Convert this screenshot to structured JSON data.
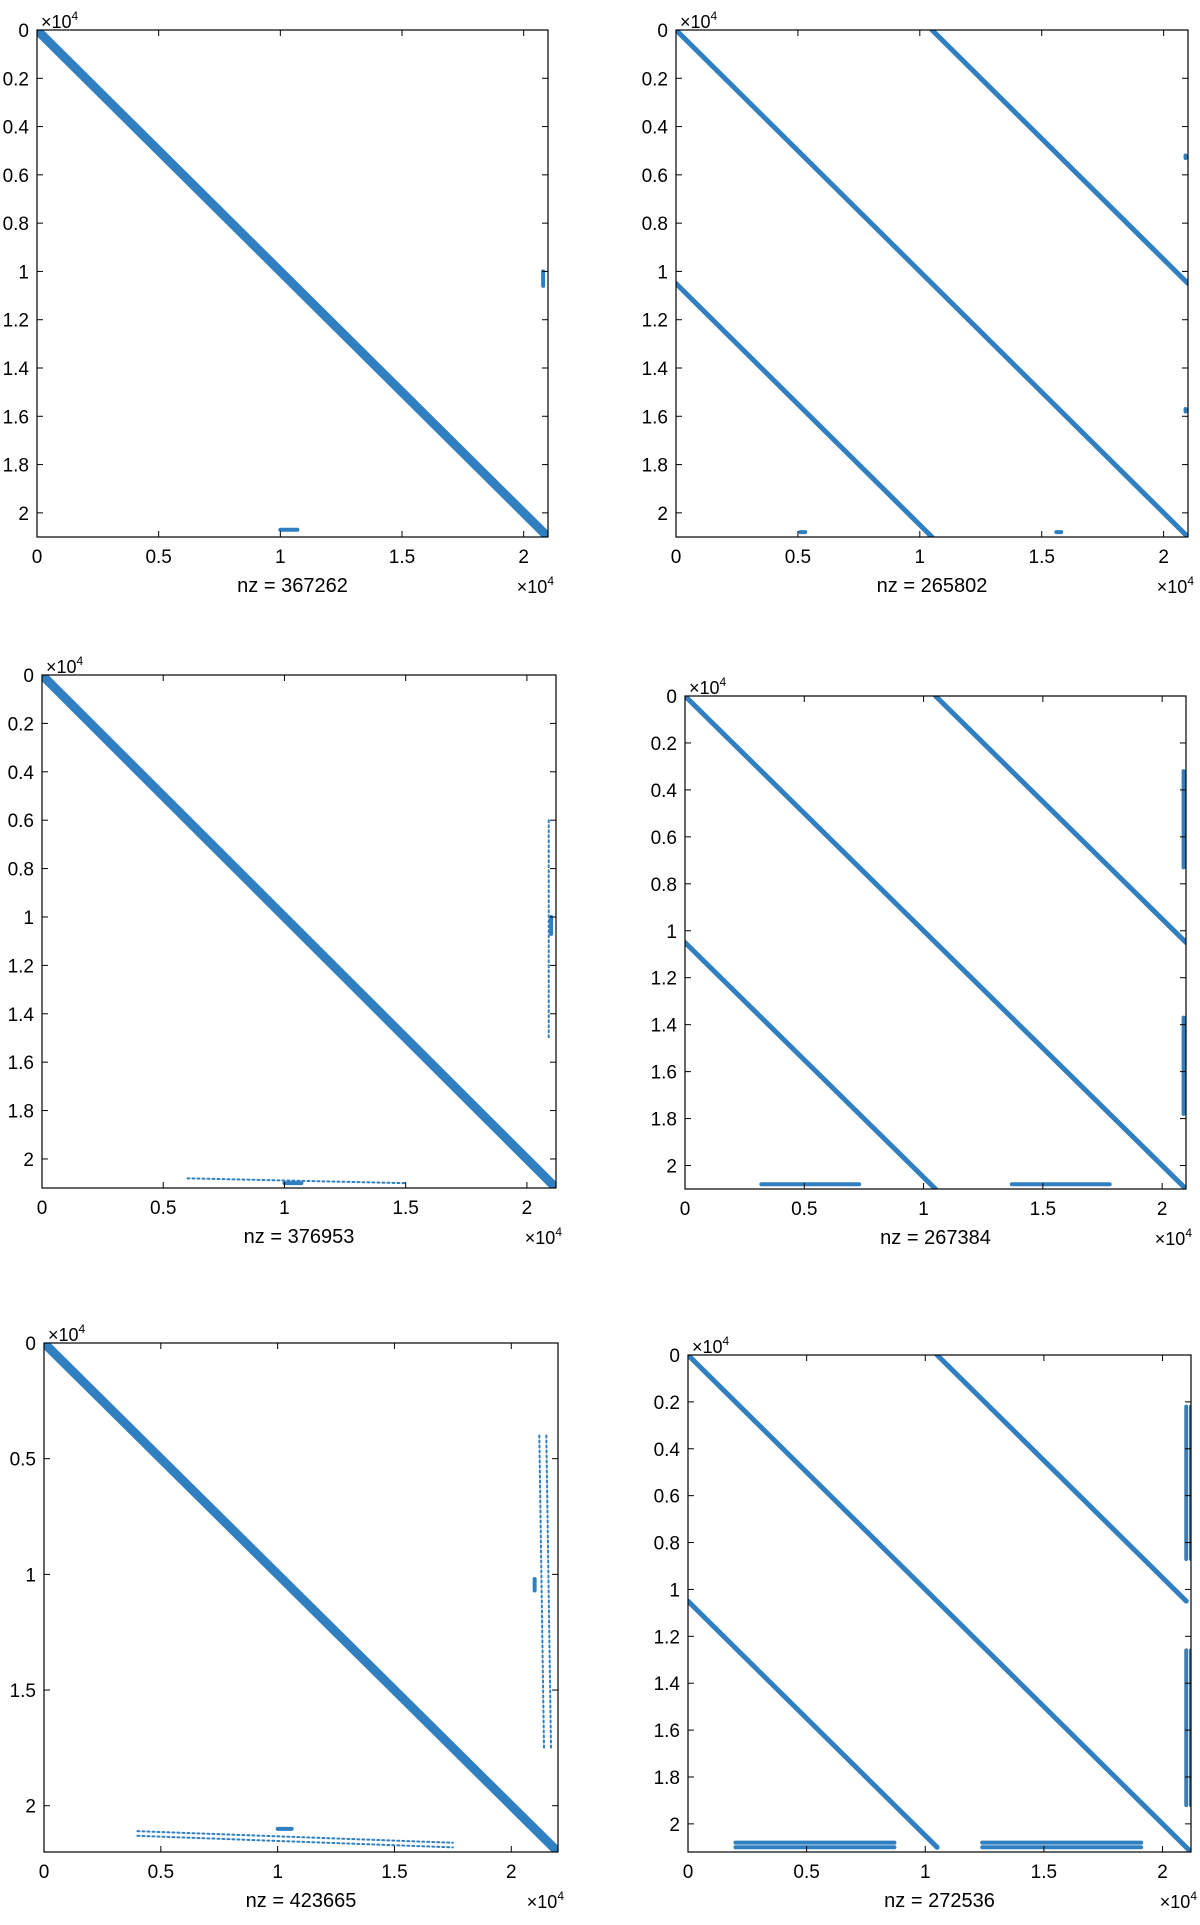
{
  "colors": {
    "pattern": "#2f7fc1",
    "axis": "#000000",
    "background": "#ffffff"
  },
  "chart_data": [
    {
      "type": "spy",
      "nz_label": "nz = 367262",
      "xticks": [
        {
          "v": 0,
          "label": "0"
        },
        {
          "v": 0.5,
          "label": "0.5"
        },
        {
          "v": 1,
          "label": "1"
        },
        {
          "v": 1.5,
          "label": "1.5"
        },
        {
          "v": 2,
          "label": "2"
        }
      ],
      "yticks": [
        {
          "v": 0,
          "label": "0"
        },
        {
          "v": 0.2,
          "label": "0.2"
        },
        {
          "v": 0.4,
          "label": "0.4"
        },
        {
          "v": 0.6,
          "label": "0.6"
        },
        {
          "v": 0.8,
          "label": "0.8"
        },
        {
          "v": 1,
          "label": "1"
        },
        {
          "v": 1.2,
          "label": "1.2"
        },
        {
          "v": 1.4,
          "label": "1.4"
        },
        {
          "v": 1.6,
          "label": "1.6"
        },
        {
          "v": 1.8,
          "label": "1.8"
        },
        {
          "v": 2,
          "label": "2"
        }
      ],
      "x_multiplier": {
        "base": "×10",
        "exp": "4"
      },
      "y_multiplier": {
        "base": "×10",
        "exp": "4"
      },
      "xlim": [
        0,
        2.1
      ],
      "ylim": [
        0,
        2.1
      ],
      "bands": [
        {
          "name": "main-diagonal",
          "x0": 0,
          "y0": 0,
          "x1": 2.1,
          "y1": 2.1,
          "width": 9,
          "dashed": false
        }
      ],
      "blobs": [
        {
          "name": "right-column-block",
          "x0": 2.08,
          "y0": 1.0,
          "x1": 2.08,
          "y1": 1.06,
          "width": 4,
          "dashed": false
        },
        {
          "name": "bottom-row-block",
          "x0": 1.0,
          "y0": 2.07,
          "x1": 1.07,
          "y1": 2.07,
          "width": 4,
          "dashed": false
        }
      ]
    },
    {
      "type": "spy",
      "nz_label": "nz = 265802",
      "xticks": [
        {
          "v": 0,
          "label": "0"
        },
        {
          "v": 0.5,
          "label": "0.5"
        },
        {
          "v": 1,
          "label": "1"
        },
        {
          "v": 1.5,
          "label": "1.5"
        },
        {
          "v": 2,
          "label": "2"
        }
      ],
      "yticks": [
        {
          "v": 0,
          "label": "0"
        },
        {
          "v": 0.2,
          "label": "0.2"
        },
        {
          "v": 0.4,
          "label": "0.4"
        },
        {
          "v": 0.6,
          "label": "0.6"
        },
        {
          "v": 0.8,
          "label": "0.8"
        },
        {
          "v": 1,
          "label": "1"
        },
        {
          "v": 1.2,
          "label": "1.2"
        },
        {
          "v": 1.4,
          "label": "1.4"
        },
        {
          "v": 1.6,
          "label": "1.6"
        },
        {
          "v": 1.8,
          "label": "1.8"
        },
        {
          "v": 2,
          "label": "2"
        }
      ],
      "x_multiplier": {
        "base": "×10",
        "exp": "4"
      },
      "y_multiplier": {
        "base": "×10",
        "exp": "4"
      },
      "xlim": [
        0,
        2.1
      ],
      "ylim": [
        0,
        2.1
      ],
      "bands": [
        {
          "name": "main-diagonal",
          "x0": 0,
          "y0": 0,
          "x1": 2.1,
          "y1": 2.1,
          "width": 5,
          "dashed": false
        },
        {
          "name": "upper-off-diagonal",
          "x0": 1.05,
          "y0": 0,
          "x1": 2.1,
          "y1": 1.05,
          "width": 5,
          "dashed": false
        },
        {
          "name": "lower-off-diagonal",
          "x0": 0,
          "y0": 1.05,
          "x1": 1.05,
          "y1": 2.1,
          "width": 5,
          "dashed": false
        }
      ],
      "blobs": [
        {
          "name": "right-dot-1",
          "x0": 2.09,
          "y0": 0.52,
          "x1": 2.09,
          "y1": 0.53,
          "width": 4,
          "dashed": false
        },
        {
          "name": "right-dot-2",
          "x0": 2.09,
          "y0": 1.57,
          "x1": 2.09,
          "y1": 1.58,
          "width": 4,
          "dashed": false
        },
        {
          "name": "bottom-dot-1",
          "x0": 0.51,
          "y0": 2.08,
          "x1": 0.53,
          "y1": 2.08,
          "width": 4,
          "dashed": false
        },
        {
          "name": "bottom-dot-2",
          "x0": 1.56,
          "y0": 2.08,
          "x1": 1.58,
          "y1": 2.08,
          "width": 4,
          "dashed": false
        }
      ]
    },
    {
      "type": "spy",
      "nz_label": "nz = 376953",
      "xticks": [
        {
          "v": 0,
          "label": "0"
        },
        {
          "v": 0.5,
          "label": "0.5"
        },
        {
          "v": 1,
          "label": "1"
        },
        {
          "v": 1.5,
          "label": "1.5"
        },
        {
          "v": 2,
          "label": "2"
        }
      ],
      "yticks": [
        {
          "v": 0,
          "label": "0"
        },
        {
          "v": 0.2,
          "label": "0.2"
        },
        {
          "v": 0.4,
          "label": "0.4"
        },
        {
          "v": 0.6,
          "label": "0.6"
        },
        {
          "v": 0.8,
          "label": "0.8"
        },
        {
          "v": 1,
          "label": "1"
        },
        {
          "v": 1.2,
          "label": "1.2"
        },
        {
          "v": 1.4,
          "label": "1.4"
        },
        {
          "v": 1.6,
          "label": "1.6"
        },
        {
          "v": 1.8,
          "label": "1.8"
        },
        {
          "v": 2,
          "label": "2"
        }
      ],
      "x_multiplier": {
        "base": "×10",
        "exp": "4"
      },
      "y_multiplier": {
        "base": "×10",
        "exp": "4"
      },
      "xlim": [
        0,
        2.12
      ],
      "ylim": [
        0,
        2.12
      ],
      "bands": [
        {
          "name": "main-diagonal",
          "x0": 0,
          "y0": 0,
          "x1": 2.12,
          "y1": 2.12,
          "width": 9,
          "dashed": false
        }
      ],
      "blobs": [
        {
          "name": "right-column-dotted",
          "x0": 2.09,
          "y0": 0.6,
          "x1": 2.09,
          "y1": 1.5,
          "width": 2,
          "dashed": true
        },
        {
          "name": "right-column-block",
          "x0": 2.1,
          "y0": 1.0,
          "x1": 2.1,
          "y1": 1.07,
          "width": 4,
          "dashed": false
        },
        {
          "name": "bottom-row-dotted",
          "x0": 0.6,
          "y0": 2.08,
          "x1": 1.5,
          "y1": 2.1,
          "width": 2,
          "dashed": true
        },
        {
          "name": "bottom-row-block",
          "x0": 1.0,
          "y0": 2.1,
          "x1": 1.07,
          "y1": 2.1,
          "width": 4,
          "dashed": false
        }
      ]
    },
    {
      "type": "spy",
      "nz_label": "nz = 267384",
      "xticks": [
        {
          "v": 0,
          "label": "0"
        },
        {
          "v": 0.5,
          "label": "0.5"
        },
        {
          "v": 1,
          "label": "1"
        },
        {
          "v": 1.5,
          "label": "1.5"
        },
        {
          "v": 2,
          "label": "2"
        }
      ],
      "yticks": [
        {
          "v": 0,
          "label": "0"
        },
        {
          "v": 0.2,
          "label": "0.2"
        },
        {
          "v": 0.4,
          "label": "0.4"
        },
        {
          "v": 0.6,
          "label": "0.6"
        },
        {
          "v": 0.8,
          "label": "0.8"
        },
        {
          "v": 1,
          "label": "1"
        },
        {
          "v": 1.2,
          "label": "1.2"
        },
        {
          "v": 1.4,
          "label": "1.4"
        },
        {
          "v": 1.6,
          "label": "1.6"
        },
        {
          "v": 1.8,
          "label": "1.8"
        },
        {
          "v": 2,
          "label": "2"
        }
      ],
      "x_multiplier": {
        "base": "×10",
        "exp": "4"
      },
      "y_multiplier": {
        "base": "×10",
        "exp": "4"
      },
      "xlim": [
        0,
        2.1
      ],
      "ylim": [
        0,
        2.1
      ],
      "bands": [
        {
          "name": "main-diagonal",
          "x0": 0,
          "y0": 0,
          "x1": 2.1,
          "y1": 2.1,
          "width": 5,
          "dashed": false
        },
        {
          "name": "upper-off-diagonal",
          "x0": 1.05,
          "y0": 0,
          "x1": 2.1,
          "y1": 1.05,
          "width": 5,
          "dashed": false
        },
        {
          "name": "lower-off-diagonal",
          "x0": 0,
          "y0": 1.05,
          "x1": 1.05,
          "y1": 2.1,
          "width": 5,
          "dashed": false
        }
      ],
      "blobs": [
        {
          "name": "right-column-1",
          "x0": 2.09,
          "y0": 0.32,
          "x1": 2.09,
          "y1": 0.73,
          "width": 4,
          "dashed": false
        },
        {
          "name": "right-column-2",
          "x0": 2.09,
          "y0": 1.37,
          "x1": 2.09,
          "y1": 1.78,
          "width": 4,
          "dashed": false
        },
        {
          "name": "bottom-row-1",
          "x0": 0.32,
          "y0": 2.08,
          "x1": 0.73,
          "y1": 2.08,
          "width": 4,
          "dashed": false
        },
        {
          "name": "bottom-row-2",
          "x0": 1.37,
          "y0": 2.08,
          "x1": 1.78,
          "y1": 2.08,
          "width": 4,
          "dashed": false
        }
      ]
    },
    {
      "type": "spy",
      "nz_label": "nz = 423665",
      "xticks": [
        {
          "v": 0,
          "label": "0"
        },
        {
          "v": 0.5,
          "label": "0.5"
        },
        {
          "v": 1,
          "label": "1"
        },
        {
          "v": 1.5,
          "label": "1.5"
        },
        {
          "v": 2,
          "label": "2"
        }
      ],
      "yticks": [
        {
          "v": 0,
          "label": "0"
        },
        {
          "v": 0.5,
          "label": "0.5"
        },
        {
          "v": 1,
          "label": "1"
        },
        {
          "v": 1.5,
          "label": "1.5"
        },
        {
          "v": 2,
          "label": "2"
        }
      ],
      "x_multiplier": {
        "base": "×10",
        "exp": "4"
      },
      "y_multiplier": {
        "base": "×10",
        "exp": "4"
      },
      "xlim": [
        0,
        2.2
      ],
      "ylim": [
        0,
        2.2
      ],
      "bands": [
        {
          "name": "main-diagonal",
          "x0": 0,
          "y0": 0,
          "x1": 2.2,
          "y1": 2.2,
          "width": 9,
          "dashed": false
        }
      ],
      "blobs": [
        {
          "name": "right-column-dotted-a",
          "x0": 2.12,
          "y0": 0.4,
          "x1": 2.14,
          "y1": 1.75,
          "width": 2,
          "dashed": true
        },
        {
          "name": "right-column-dotted-b",
          "x0": 2.15,
          "y0": 0.4,
          "x1": 2.17,
          "y1": 1.75,
          "width": 2,
          "dashed": true
        },
        {
          "name": "right-column-block",
          "x0": 2.1,
          "y0": 1.02,
          "x1": 2.1,
          "y1": 1.07,
          "width": 4,
          "dashed": false
        },
        {
          "name": "bottom-row-dotted-a",
          "x0": 0.4,
          "y0": 2.11,
          "x1": 1.75,
          "y1": 2.16,
          "width": 2,
          "dashed": true
        },
        {
          "name": "bottom-row-dotted-b",
          "x0": 0.4,
          "y0": 2.13,
          "x1": 1.75,
          "y1": 2.18,
          "width": 2,
          "dashed": true
        },
        {
          "name": "bottom-row-block",
          "x0": 1.0,
          "y0": 2.1,
          "x1": 1.06,
          "y1": 2.1,
          "width": 4,
          "dashed": false
        }
      ]
    },
    {
      "type": "spy",
      "nz_label": "nz = 272536",
      "xticks": [
        {
          "v": 0,
          "label": "0"
        },
        {
          "v": 0.5,
          "label": "0.5"
        },
        {
          "v": 1,
          "label": "1"
        },
        {
          "v": 1.5,
          "label": "1.5"
        },
        {
          "v": 2,
          "label": "2"
        }
      ],
      "yticks": [
        {
          "v": 0,
          "label": "0"
        },
        {
          "v": 0.2,
          "label": "0.2"
        },
        {
          "v": 0.4,
          "label": "0.4"
        },
        {
          "v": 0.6,
          "label": "0.6"
        },
        {
          "v": 0.8,
          "label": "0.8"
        },
        {
          "v": 1,
          "label": "1"
        },
        {
          "v": 1.2,
          "label": "1.2"
        },
        {
          "v": 1.4,
          "label": "1.4"
        },
        {
          "v": 1.6,
          "label": "1.6"
        },
        {
          "v": 1.8,
          "label": "1.8"
        },
        {
          "v": 2,
          "label": "2"
        }
      ],
      "x_multiplier": {
        "base": "×10",
        "exp": "4"
      },
      "y_multiplier": {
        "base": "×10",
        "exp": "4"
      },
      "xlim": [
        0,
        2.12
      ],
      "ylim": [
        0,
        2.12
      ],
      "bands": [
        {
          "name": "main-diagonal",
          "x0": 0,
          "y0": 0,
          "x1": 2.12,
          "y1": 2.12,
          "width": 5,
          "dashed": false
        },
        {
          "name": "upper-off-diagonal",
          "x0": 1.05,
          "y0": 0,
          "x1": 2.1,
          "y1": 1.05,
          "width": 5,
          "dashed": false
        },
        {
          "name": "lower-off-diagonal",
          "x0": 0,
          "y0": 1.05,
          "x1": 1.05,
          "y1": 2.1,
          "width": 5,
          "dashed": false
        }
      ],
      "blobs": [
        {
          "name": "right-column-1a",
          "x0": 2.1,
          "y0": 0.22,
          "x1": 2.1,
          "y1": 0.87,
          "width": 4,
          "dashed": false
        },
        {
          "name": "right-column-1b",
          "x0": 2.12,
          "y0": 0.22,
          "x1": 2.12,
          "y1": 0.87,
          "width": 4,
          "dashed": false
        },
        {
          "name": "right-column-2a",
          "x0": 2.1,
          "y0": 1.26,
          "x1": 2.1,
          "y1": 1.92,
          "width": 4,
          "dashed": false
        },
        {
          "name": "right-column-2b",
          "x0": 2.12,
          "y0": 1.26,
          "x1": 2.12,
          "y1": 1.92,
          "width": 4,
          "dashed": false
        },
        {
          "name": "bottom-row-1a",
          "x0": 0.2,
          "y0": 2.08,
          "x1": 0.87,
          "y1": 2.08,
          "width": 4,
          "dashed": false
        },
        {
          "name": "bottom-row-1b",
          "x0": 0.2,
          "y0": 2.1,
          "x1": 0.87,
          "y1": 2.1,
          "width": 4,
          "dashed": false
        },
        {
          "name": "bottom-row-2a",
          "x0": 1.24,
          "y0": 2.08,
          "x1": 1.91,
          "y1": 2.08,
          "width": 4,
          "dashed": false
        },
        {
          "name": "bottom-row-2b",
          "x0": 1.24,
          "y0": 2.1,
          "x1": 1.91,
          "y1": 2.1,
          "width": 4,
          "dashed": false
        }
      ]
    }
  ]
}
